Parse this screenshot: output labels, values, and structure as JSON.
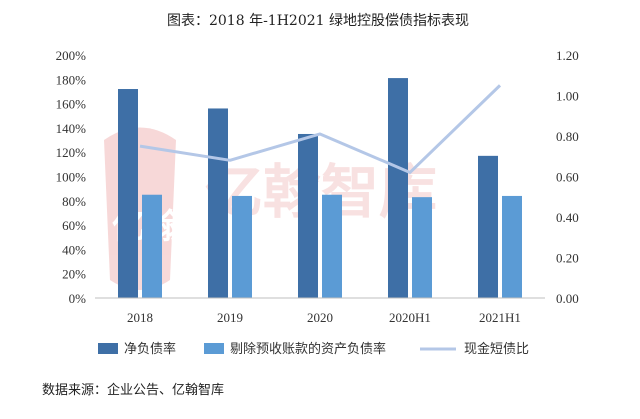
{
  "chart_data": {
    "type": "bar",
    "title": "图表：2018 年-1H2021 绿地控股偿债指标表现",
    "categories": [
      "2018",
      "2019",
      "2020",
      "2020H1",
      "2021H1"
    ],
    "y_left": {
      "ticks": [
        "0%",
        "20%",
        "40%",
        "60%",
        "80%",
        "100%",
        "120%",
        "140%",
        "160%",
        "180%",
        "200%"
      ],
      "ylim": [
        0,
        200
      ]
    },
    "y_right": {
      "ticks": [
        "0.00",
        "0.20",
        "0.40",
        "0.60",
        "0.80",
        "1.00",
        "1.20"
      ],
      "ylim": [
        0,
        1.2
      ]
    },
    "series": [
      {
        "name": "净负债率",
        "type": "bar",
        "axis": "left",
        "color": "#3e6fa6",
        "values": [
          172,
          156,
          135,
          181,
          117
        ]
      },
      {
        "name": "剔除预收账款的资产负债率",
        "type": "bar",
        "axis": "left",
        "color": "#5b9bd5",
        "values": [
          85,
          84,
          85,
          83,
          84
        ]
      },
      {
        "name": "现金短债比",
        "type": "line",
        "axis": "right",
        "color": "#b4c7e7",
        "values": [
          0.75,
          0.68,
          0.81,
          0.62,
          1.05
        ]
      }
    ],
    "legend": "bottom",
    "grid": false
  },
  "watermark": {
    "text": "亿翰智库",
    "logo_text": "亿翰"
  },
  "source": "数据来源：企业公告、亿翰智库"
}
